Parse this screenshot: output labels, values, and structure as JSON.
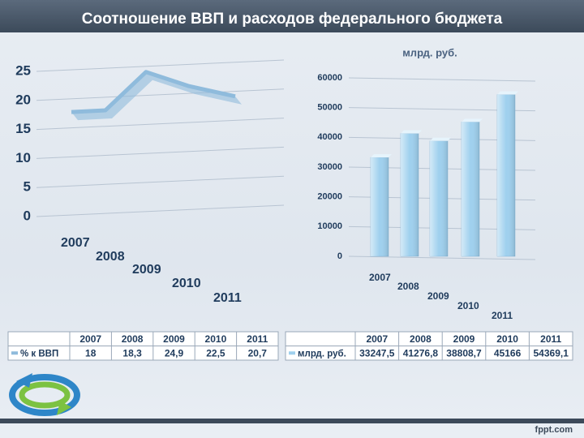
{
  "title": "Соотношение ВВП и расходов федерального бюджета",
  "footer": "fppt.com",
  "chart_data": [
    {
      "type": "line",
      "categories": [
        "2007",
        "2008",
        "2009",
        "2010",
        "2011"
      ],
      "series": [
        {
          "name": "% к ВВП",
          "color": "#8fbbdc",
          "values": [
            18,
            18.3,
            24.9,
            22.5,
            20.7
          ],
          "value_labels": [
            "18",
            "18,3",
            "24,9",
            "22,5",
            "20,7"
          ]
        }
      ],
      "ylim": [
        0,
        25
      ],
      "yticks": [
        0,
        5,
        10,
        15,
        20,
        25
      ],
      "grid": true
    },
    {
      "type": "bar",
      "y_label": "млрд. руб.",
      "categories": [
        "2007",
        "2008",
        "2009",
        "2010",
        "2011"
      ],
      "series": [
        {
          "name": "млрд. руб.",
          "color": "#9fd0ee",
          "values": [
            33247.5,
            41276.8,
            38808.7,
            45166,
            54369.1
          ],
          "value_labels": [
            "33247,5",
            "41276,8",
            "38808,7",
            "45166",
            "54369,1"
          ]
        }
      ],
      "ylim": [
        0,
        60000
      ],
      "yticks": [
        0,
        10000,
        20000,
        30000,
        40000,
        50000,
        60000
      ],
      "grid": true
    }
  ]
}
